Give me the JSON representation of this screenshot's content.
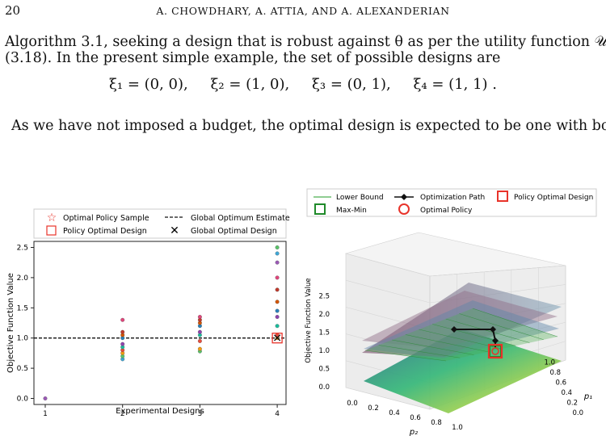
{
  "page": {
    "number": "20",
    "running_head": "A. CHOWDHARY, A. ATTIA, AND A. ALEXANDERIAN"
  },
  "text": {
    "line1": "Algorithm 3.1, seeking a design that is robust against θ as per the utility function 𝒰",
    "line2": "(3.18). In the present simple example, the set of possible designs are",
    "designs": [
      "ξ₁ = (0, 0),",
      "ξ₂ = (1, 0),",
      "ξ₃ = (0, 1),",
      "ξ₄ = (1, 1) ."
    ],
    "line3": "As we have not imposed a budget, the optimal design is expected to be one with both"
  },
  "left_chart": {
    "legend": {
      "optimal_policy_sample": "Optimal Policy Sample",
      "global_optimum_estimate": "Global Optimum Estimate",
      "policy_optimal_design": "Policy Optimal Design",
      "global_optimal_design": "Global Optimal Design"
    },
    "xlabel": "Experimental Designs",
    "ylabel": "Objective Function Value",
    "xticks": [
      "1",
      "2",
      "3",
      "4"
    ],
    "yticks": [
      "0.0",
      "0.5",
      "1.0",
      "1.5",
      "2.0",
      "2.5"
    ]
  },
  "right_chart": {
    "legend": {
      "lower_bound": "Lower Bound",
      "optimization_path": "Optimization Path",
      "policy_optimal_design": "Policy Optimal Design",
      "max_min": "Max-Min",
      "optimal_policy": "Optimal Policy"
    },
    "zlabel": "Objective Function Value",
    "xlabel": "p₂",
    "ylabel": "p₁",
    "zticks": [
      "0.0",
      "0.5",
      "1.0",
      "1.5",
      "2.0",
      "2.5"
    ],
    "xticks": [
      "0.0",
      "0.2",
      "0.4",
      "0.6",
      "0.8",
      "1.0"
    ],
    "yticks": [
      "0.0",
      "0.2",
      "0.4",
      "0.6",
      "0.8",
      "1.0"
    ]
  },
  "chart_data": [
    {
      "type": "scatter",
      "title": "",
      "xlabel": "Experimental Designs",
      "ylabel": "Objective Function Value",
      "categories": [
        "1",
        "2",
        "3",
        "4"
      ],
      "ylim": [
        -0.1,
        2.6
      ],
      "reference_line": {
        "name": "Global Optimum Estimate",
        "y": 1.0,
        "style": "dashed"
      },
      "points": [
        {
          "x": 1,
          "values": [
            0.0
          ]
        },
        {
          "x": 2,
          "values": [
            0.65,
            0.7,
            0.75,
            0.8,
            0.85,
            0.9,
            1.0,
            1.05,
            1.1,
            1.3
          ]
        },
        {
          "x": 3,
          "values": [
            0.78,
            0.82,
            0.95,
            1.05,
            1.1,
            1.2,
            1.25,
            1.3,
            1.35
          ]
        },
        {
          "x": 4,
          "values": [
            1.0,
            1.05,
            1.2,
            1.35,
            1.45,
            1.6,
            1.8,
            2.0,
            2.25,
            2.4,
            2.5
          ]
        }
      ],
      "markers": [
        {
          "name": "Policy Optimal Design",
          "x": 4,
          "y": 1.0,
          "shape": "square",
          "color": "#e8332a"
        },
        {
          "name": "Global Optimal Design",
          "x": 4,
          "y": 1.0,
          "shape": "x",
          "color": "#111111"
        }
      ],
      "grid": false,
      "legend": "top"
    },
    {
      "type": "surface3d",
      "zlabel": "Objective Function Value",
      "xlabel": "p₂",
      "ylabel": "p₁",
      "zlim": [
        0,
        2.5
      ],
      "xlim": [
        0,
        1
      ],
      "ylim": [
        0,
        1
      ],
      "optimization_path": [
        [
          0.0,
          0.0,
          1.25
        ],
        [
          0.3,
          0.0,
          1.25
        ],
        [
          0.3,
          1.0,
          1.25
        ],
        [
          0.3,
          1.0,
          0.9
        ],
        [
          1.0,
          1.0,
          1.0
        ]
      ],
      "colors": {
        "surface_low": "#3b528b",
        "surface_high": "#fde725",
        "lower_bound": "#4caf50",
        "policy": "#e8332a"
      },
      "legend": "top"
    }
  ]
}
